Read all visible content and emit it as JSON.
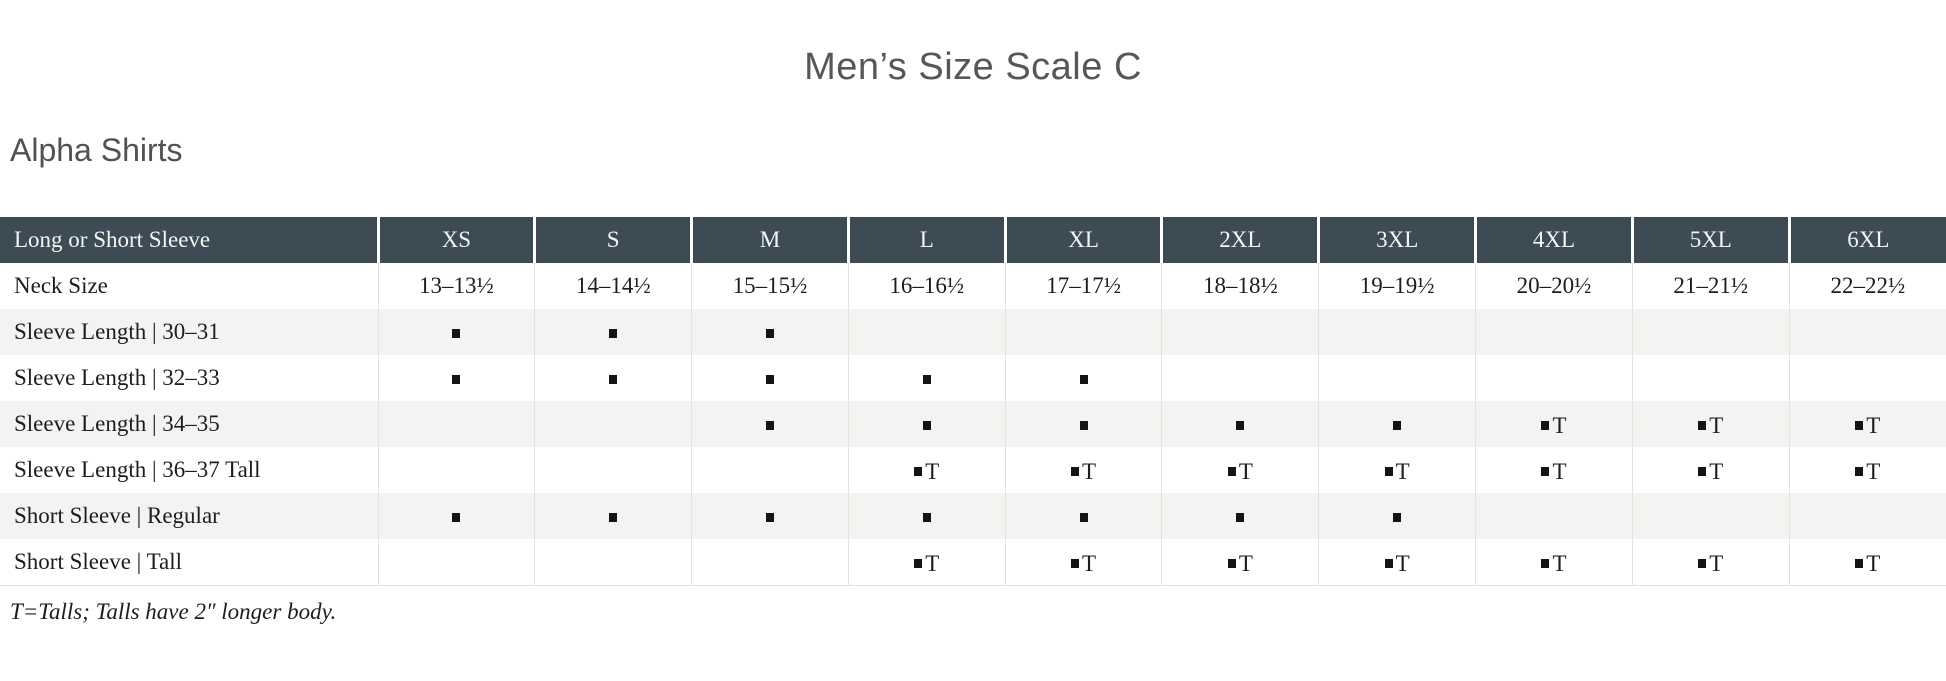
{
  "page": {
    "title": "Men’s Size Scale C",
    "section_heading": "Alpha Shirts",
    "footnote": "T=Talls; Talls have 2″ longer body."
  },
  "table": {
    "header_label": "Long or Short Sleeve",
    "sizes": [
      "XS",
      "S",
      "M",
      "L",
      "XL",
      "2XL",
      "3XL",
      "4XL",
      "5XL",
      "6XL"
    ],
    "tall_letter": "T",
    "square_glyph": "▪",
    "rows": [
      {
        "label": "Neck Size",
        "style": "text",
        "cells": [
          "13–13½",
          "14–14½",
          "15–15½",
          "16–16½",
          "17–17½",
          "18–18½",
          "19–19½",
          "20–20½",
          "21–21½",
          "22–22½"
        ]
      },
      {
        "label": "Sleeve Length | 30–31",
        "style": "marks",
        "cells": [
          "s",
          "s",
          "s",
          "",
          "",
          "",
          "",
          "",
          "",
          ""
        ]
      },
      {
        "label": "Sleeve Length | 32–33",
        "style": "marks",
        "cells": [
          "s",
          "s",
          "s",
          "s",
          "s",
          "",
          "",
          "",
          "",
          ""
        ]
      },
      {
        "label": "Sleeve Length | 34–35",
        "style": "marks",
        "cells": [
          "",
          "",
          "s",
          "s",
          "s",
          "s",
          "s",
          "sT",
          "sT",
          "sT"
        ]
      },
      {
        "label": "Sleeve Length | 36–37 Tall",
        "style": "marks",
        "cells": [
          "",
          "",
          "",
          "sT",
          "sT",
          "sT",
          "sT",
          "sT",
          "sT",
          "sT"
        ]
      },
      {
        "label": "Short Sleeve | Regular",
        "style": "marks",
        "cells": [
          "s",
          "s",
          "s",
          "s",
          "s",
          "s",
          "s",
          "",
          "",
          ""
        ]
      },
      {
        "label": "Short Sleeve | Tall",
        "style": "marks",
        "cells": [
          "",
          "",
          "",
          "sT",
          "sT",
          "sT",
          "sT",
          "sT",
          "sT",
          "sT"
        ]
      }
    ]
  },
  "colors": {
    "header_bg": "#3d4b54",
    "header_text": "#f3f5f4",
    "row_stripe": "#f4f3f1",
    "body_text": "#1d1d1d",
    "title_text": "#56575b"
  }
}
